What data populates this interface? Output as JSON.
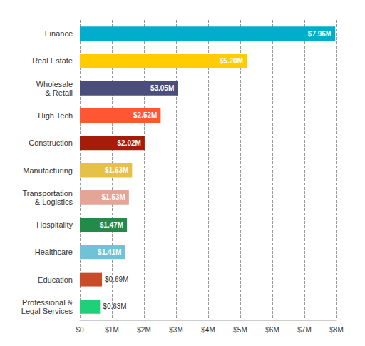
{
  "chart_data": {
    "type": "bar",
    "orientation": "horizontal",
    "categories": [
      "Finance",
      "Real Estate",
      "Wholesale\n& Retail",
      "High Tech",
      "Construction",
      "Manufacturing",
      "Transportation\n& Logistics",
      "Hospitality",
      "Healthcare",
      "Education",
      "Professional &\nLegal Services"
    ],
    "values": [
      7.96,
      5.2,
      3.05,
      2.52,
      2.02,
      1.63,
      1.53,
      1.47,
      1.41,
      0.69,
      0.63
    ],
    "value_labels": [
      "$7.96M",
      "$5.20M",
      "$3.05M",
      "$2.52M",
      "$2.02M",
      "$1.63M",
      "$1.53M",
      "$1.47M",
      "$1.41M",
      "$0.69M",
      "$0.63M"
    ],
    "colors": [
      "#00AECB",
      "#FFCC00",
      "#4B4E7A",
      "#FF5733",
      "#A51C0A",
      "#E6C14A",
      "#E3A696",
      "#248A4A",
      "#6EC4D6",
      "#C84B2A",
      "#1ED07A"
    ],
    "xlim": [
      0,
      8
    ],
    "xticks": [
      {
        "value": 0,
        "label": "$0"
      },
      {
        "value": 1,
        "label": "$1M"
      },
      {
        "value": 2,
        "label": "$2M"
      },
      {
        "value": 3,
        "label": "$3M"
      },
      {
        "value": 4,
        "label": "$4M"
      },
      {
        "value": 5,
        "label": "$5M"
      },
      {
        "value": 6,
        "label": "$6M"
      },
      {
        "value": 7,
        "label": "$7M"
      },
      {
        "value": 8,
        "label": "$8M"
      }
    ],
    "data_labels": true,
    "grid": true
  }
}
